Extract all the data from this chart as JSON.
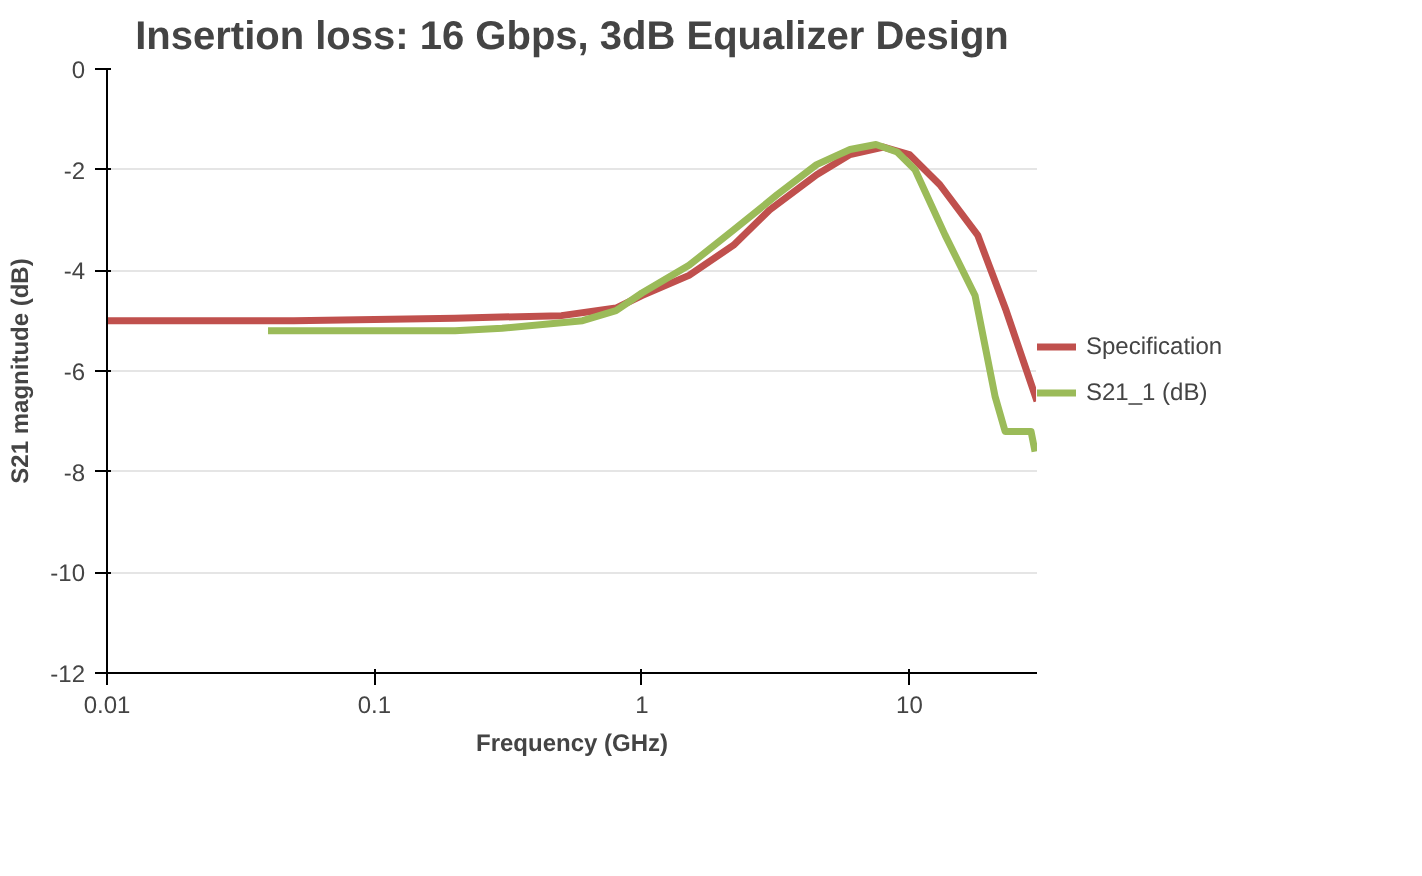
{
  "chart_data": {
    "type": "line",
    "title": "Insertion loss: 16 Gbps, 3dB Equalizer Design",
    "xlabel": "Frequency (GHz)",
    "ylabel": "S21 magnitude (dB)",
    "log": "x",
    "xlim": [
      0.01,
      30
    ],
    "xticks": [
      0.01,
      0.1,
      1,
      10
    ],
    "ylim": [
      -12,
      0
    ],
    "yticks": [
      -12,
      -10,
      -8,
      -6,
      -4,
      -2,
      0
    ],
    "grid": "y",
    "legend": "right",
    "series": [
      {
        "name": "Specification",
        "color": "#c0504d",
        "x": [
          0.01,
          0.05,
          0.2,
          0.5,
          0.8,
          1,
          1.5,
          2.2,
          3,
          4.5,
          6,
          8,
          10,
          13,
          18,
          23,
          30
        ],
        "values": [
          -5,
          -5,
          -4.95,
          -4.9,
          -4.75,
          -4.5,
          -4.1,
          -3.5,
          -2.8,
          -2.1,
          -1.7,
          -1.55,
          -1.7,
          -2.3,
          -3.3,
          -4.8,
          -6.6
        ]
      },
      {
        "name": "S21_1 (dB)",
        "color": "#9bbb59",
        "x": [
          0.04,
          0.2,
          0.3,
          0.6,
          0.8,
          1,
          1.5,
          2.2,
          3.2,
          4.5,
          6,
          7.5,
          9,
          10.5,
          13.6,
          17.6,
          20.9,
          22.8,
          28.5,
          29.5
        ],
        "values": [
          -5.2,
          -5.2,
          -5.15,
          -5,
          -4.8,
          -4.45,
          -3.9,
          -3.2,
          -2.5,
          -1.9,
          -1.6,
          -1.5,
          -1.65,
          -2.0,
          -3.3,
          -4.5,
          -6.5,
          -7.2,
          -7.2,
          -7.6
        ]
      }
    ]
  }
}
